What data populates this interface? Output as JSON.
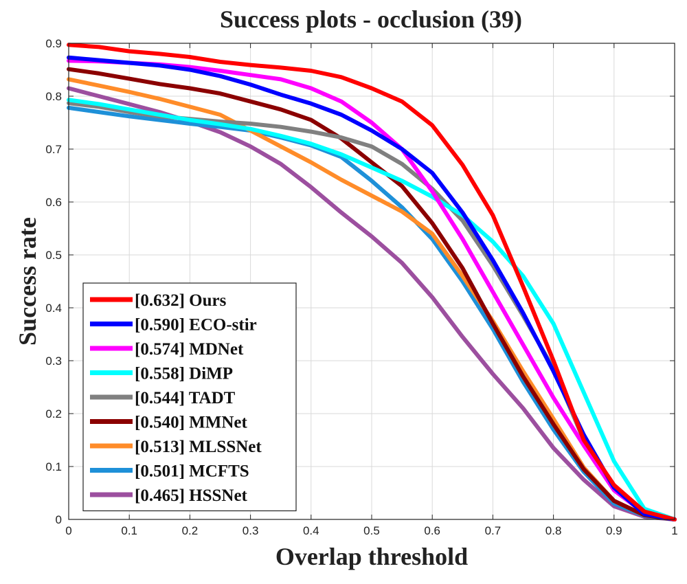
{
  "chart_data": {
    "type": "line",
    "title": "Success plots - occlusion (39)",
    "xlabel": "Overlap threshold",
    "ylabel": "Success rate",
    "xlim": [
      0,
      1
    ],
    "ylim": [
      0,
      0.9
    ],
    "grid": true,
    "legend_position": "bottom-left",
    "x_ticks": [
      "0",
      "0.1",
      "0.2",
      "0.3",
      "0.4",
      "0.5",
      "0.6",
      "0.7",
      "0.8",
      "0.9",
      "1"
    ],
    "y_ticks": [
      "0",
      "0.1",
      "0.2",
      "0.3",
      "0.4",
      "0.5",
      "0.6",
      "0.7",
      "0.8",
      "0.9"
    ],
    "x": [
      0,
      0.05,
      0.1,
      0.15,
      0.2,
      0.25,
      0.3,
      0.35,
      0.4,
      0.45,
      0.5,
      0.55,
      0.6,
      0.65,
      0.7,
      0.75,
      0.8,
      0.85,
      0.9,
      0.95,
      1
    ],
    "series": [
      {
        "name": "Ours",
        "legend": "[0.632] Ours",
        "color": "#ff0000",
        "values": [
          0.897,
          0.893,
          0.885,
          0.88,
          0.874,
          0.865,
          0.859,
          0.854,
          0.848,
          0.836,
          0.815,
          0.79,
          0.745,
          0.67,
          0.575,
          0.44,
          0.3,
          0.15,
          0.065,
          0.015,
          0
        ]
      },
      {
        "name": "ECO-stir",
        "legend": "[0.590] ECO-stir",
        "color": "#0000ff",
        "values": [
          0.873,
          0.868,
          0.863,
          0.858,
          0.85,
          0.838,
          0.822,
          0.803,
          0.786,
          0.765,
          0.735,
          0.7,
          0.655,
          0.58,
          0.49,
          0.39,
          0.28,
          0.16,
          0.06,
          0.01,
          0
        ]
      },
      {
        "name": "MDNet",
        "legend": "[0.574] MDNet",
        "color": "#ff00ff",
        "values": [
          0.867,
          0.866,
          0.863,
          0.86,
          0.855,
          0.848,
          0.84,
          0.832,
          0.815,
          0.79,
          0.75,
          0.7,
          0.62,
          0.53,
          0.43,
          0.33,
          0.23,
          0.14,
          0.055,
          0.012,
          0
        ]
      },
      {
        "name": "DiMP",
        "legend": "[0.558] DiMP",
        "color": "#00ffff",
        "values": [
          0.793,
          0.785,
          0.775,
          0.765,
          0.755,
          0.747,
          0.738,
          0.725,
          0.71,
          0.69,
          0.665,
          0.64,
          0.61,
          0.575,
          0.525,
          0.46,
          0.37,
          0.24,
          0.11,
          0.02,
          0
        ]
      },
      {
        "name": "TADT",
        "legend": "[0.544] TADT",
        "color": "#808080",
        "values": [
          0.787,
          0.78,
          0.77,
          0.762,
          0.757,
          0.752,
          0.748,
          0.742,
          0.733,
          0.722,
          0.705,
          0.672,
          0.625,
          0.565,
          0.48,
          0.385,
          0.285,
          0.15,
          0.058,
          0.012,
          0
        ]
      },
      {
        "name": "MMNet",
        "legend": "[0.540] MMNet",
        "color": "#8b0000",
        "values": [
          0.851,
          0.843,
          0.833,
          0.823,
          0.815,
          0.805,
          0.79,
          0.775,
          0.755,
          0.72,
          0.675,
          0.63,
          0.56,
          0.475,
          0.37,
          0.27,
          0.18,
          0.095,
          0.035,
          0.008,
          0
        ]
      },
      {
        "name": "MLSSNet",
        "legend": "[0.513] MLSSNet",
        "color": "#ff8c29",
        "values": [
          0.832,
          0.82,
          0.808,
          0.795,
          0.78,
          0.765,
          0.735,
          0.705,
          0.675,
          0.642,
          0.612,
          0.582,
          0.54,
          0.46,
          0.375,
          0.28,
          0.19,
          0.098,
          0.035,
          0.008,
          0
        ]
      },
      {
        "name": "MCFTS",
        "legend": "[0.501] MCFTS",
        "color": "#1e90d8",
        "values": [
          0.778,
          0.77,
          0.762,
          0.755,
          0.748,
          0.742,
          0.735,
          0.722,
          0.707,
          0.685,
          0.64,
          0.59,
          0.53,
          0.45,
          0.36,
          0.26,
          0.17,
          0.09,
          0.03,
          0.007,
          0
        ]
      },
      {
        "name": "HSSNet",
        "legend": "[0.465] HSSNet",
        "color": "#9c4f9f",
        "values": [
          0.815,
          0.8,
          0.785,
          0.77,
          0.752,
          0.732,
          0.705,
          0.672,
          0.628,
          0.58,
          0.535,
          0.485,
          0.42,
          0.345,
          0.275,
          0.21,
          0.135,
          0.075,
          0.025,
          0.005,
          0
        ]
      }
    ]
  }
}
